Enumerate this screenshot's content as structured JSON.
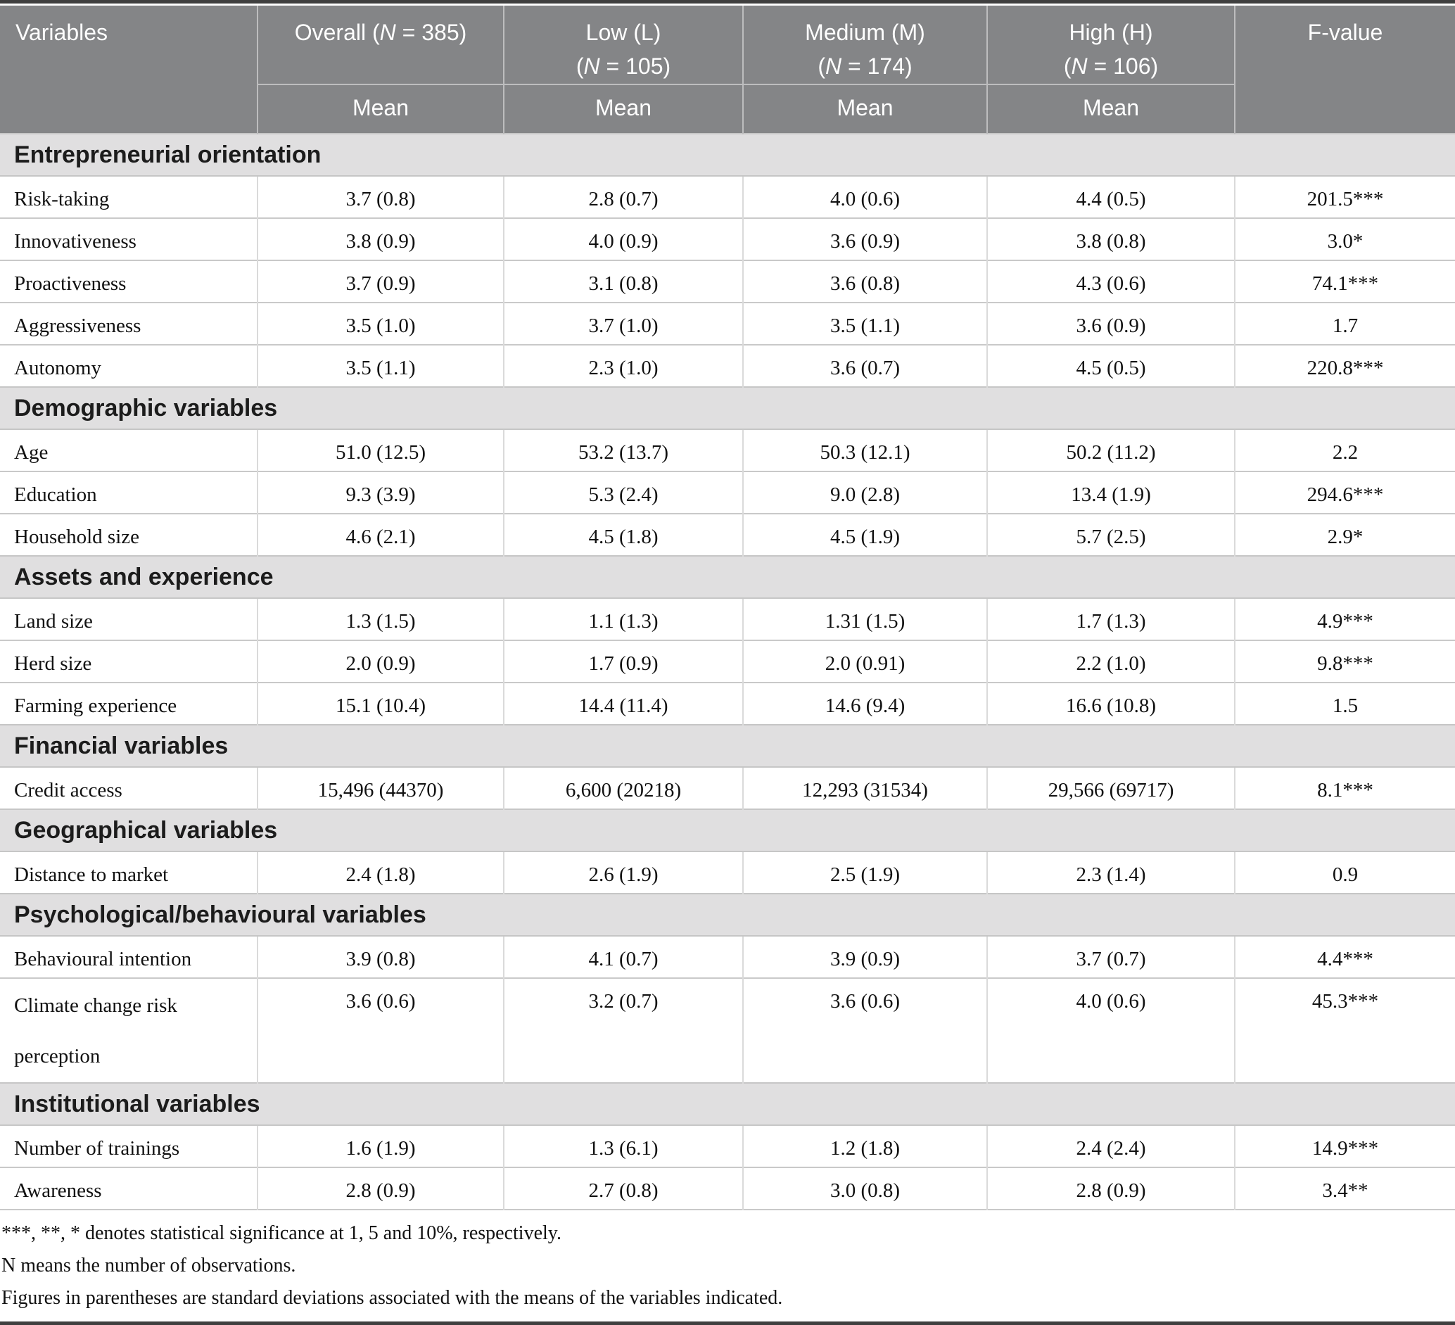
{
  "table": {
    "variables_header": "Variables",
    "fvalue_header": "F-value",
    "mean_label": "Mean",
    "n_symbol": "N",
    "group_headers": [
      {
        "title_line": "",
        "n_pre": "Overall (",
        "n_post": " = 385)"
      },
      {
        "title_line": "Low (L)",
        "n_pre": "(",
        "n_post": " = 105)"
      },
      {
        "title_line": "Medium (M)",
        "n_pre": "(",
        "n_post": " = 174)"
      },
      {
        "title_line": "High (H)",
        "n_pre": "(",
        "n_post": " = 106)"
      }
    ],
    "sections": [
      {
        "title": "Entrepreneurial orientation",
        "rows": [
          {
            "label": "Risk-taking",
            "overall": "3.7 (0.8)",
            "low": "2.8 (0.7)",
            "medium": "4.0 (0.6)",
            "high": "4.4 (0.5)",
            "f": "201.5***"
          },
          {
            "label": "Innovativeness",
            "overall": "3.8 (0.9)",
            "low": "4.0 (0.9)",
            "medium": "3.6 (0.9)",
            "high": "3.8 (0.8)",
            "f": "3.0*"
          },
          {
            "label": "Proactiveness",
            "overall": "3.7 (0.9)",
            "low": "3.1 (0.8)",
            "medium": "3.6 (0.8)",
            "high": "4.3 (0.6)",
            "f": "74.1***"
          },
          {
            "label": "Aggressiveness",
            "overall": "3.5 (1.0)",
            "low": "3.7 (1.0)",
            "medium": "3.5 (1.1)",
            "high": "3.6 (0.9)",
            "f": "1.7"
          },
          {
            "label": "Autonomy",
            "overall": "3.5 (1.1)",
            "low": "2.3 (1.0)",
            "medium": "3.6 (0.7)",
            "high": "4.5 (0.5)",
            "f": "220.8***"
          }
        ]
      },
      {
        "title": "Demographic variables",
        "rows": [
          {
            "label": "Age",
            "overall": "51.0 (12.5)",
            "low": "53.2 (13.7)",
            "medium": "50.3 (12.1)",
            "high": "50.2 (11.2)",
            "f": "2.2"
          },
          {
            "label": "Education",
            "overall": "9.3 (3.9)",
            "low": "5.3 (2.4)",
            "medium": "9.0 (2.8)",
            "high": "13.4 (1.9)",
            "f": "294.6***"
          },
          {
            "label": "Household size",
            "overall": "4.6 (2.1)",
            "low": "4.5 (1.8)",
            "medium": "4.5 (1.9)",
            "high": "5.7 (2.5)",
            "f": "2.9*"
          }
        ]
      },
      {
        "title": "Assets and experience",
        "rows": [
          {
            "label": "Land size",
            "overall": "1.3 (1.5)",
            "low": "1.1 (1.3)",
            "medium": "1.31 (1.5)",
            "high": "1.7 (1.3)",
            "f": "4.9***"
          },
          {
            "label": "Herd size",
            "overall": "2.0 (0.9)",
            "low": "1.7 (0.9)",
            "medium": "2.0 (0.91)",
            "high": "2.2 (1.0)",
            "f": "9.8***"
          },
          {
            "label": "Farming experience",
            "overall": "15.1 (10.4)",
            "low": "14.4 (11.4)",
            "medium": "14.6 (9.4)",
            "high": "16.6 (10.8)",
            "f": "1.5"
          }
        ]
      },
      {
        "title": "Financial variables",
        "rows": [
          {
            "label": "Credit access",
            "overall": "15,496 (44370)",
            "low": "6,600 (20218)",
            "medium": "12,293 (31534)",
            "high": "29,566 (69717)",
            "f": "8.1***"
          }
        ]
      },
      {
        "title": "Geographical variables",
        "rows": [
          {
            "label": "Distance to market",
            "overall": "2.4 (1.8)",
            "low": "2.6 (1.9)",
            "medium": "2.5 (1.9)",
            "high": "2.3 (1.4)",
            "f": "0.9"
          }
        ]
      },
      {
        "title": "Psychological/behavioural variables",
        "rows": [
          {
            "label": "Behavioural intention",
            "overall": "3.9 (0.8)",
            "low": "4.1 (0.7)",
            "medium": "3.9 (0.9)",
            "high": "3.7 (0.7)",
            "f": "4.4***"
          },
          {
            "label": "Climate change risk perception",
            "tall": true,
            "overall": "3.6 (0.6)",
            "low": "3.2 (0.7)",
            "medium": "3.6 (0.6)",
            "high": "4.0 (0.6)",
            "f": "45.3***"
          }
        ]
      },
      {
        "title": "Institutional variables",
        "rows": [
          {
            "label": "Number of trainings",
            "overall": "1.6 (1.9)",
            "low": "1.3 (6.1)",
            "medium": "1.2 (1.8)",
            "high": "2.4 (2.4)",
            "f": "14.9***"
          },
          {
            "label": "Awareness",
            "overall": "2.8 (0.9)",
            "low": "2.7 (0.8)",
            "medium": "3.0 (0.8)",
            "high": "2.8 (0.9)",
            "f": "3.4**"
          }
        ]
      }
    ]
  },
  "page": {
    "footnotes": [
      "***, **, * denotes statistical significance at 1, 5 and 10%, respectively.",
      "N means the number of observations.",
      "Figures in parentheses are standard deviations associated with the means of the variables indicated."
    ]
  },
  "colors": {
    "header_bg": "#848587",
    "section_band_bg": "#e0dfe0",
    "rule_dark": "#3f3f3f",
    "row_border": "#c9c9c9"
  }
}
